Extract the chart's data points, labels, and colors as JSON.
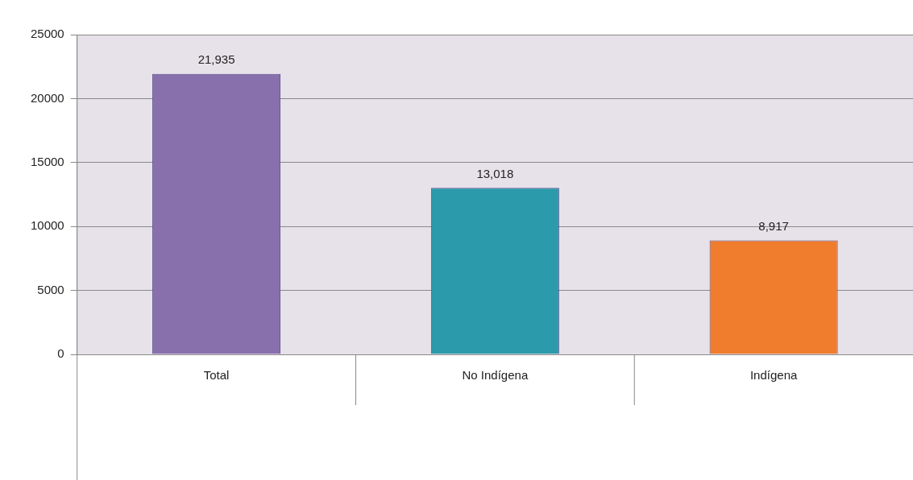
{
  "chart_data": {
    "type": "bar",
    "categories": [
      "Total",
      "No Indígena",
      "Indígena"
    ],
    "values": [
      21935,
      13018,
      8917
    ],
    "colors": [
      "#8870ad",
      "#2b9aab",
      "#f07c2e"
    ],
    "value_labels": [
      "21,935",
      "13,018",
      "8,917"
    ],
    "ylim": [
      0,
      25000
    ],
    "yticks": [
      0,
      5000,
      10000,
      15000,
      20000,
      25000
    ],
    "grid": "y",
    "legend": false
  }
}
